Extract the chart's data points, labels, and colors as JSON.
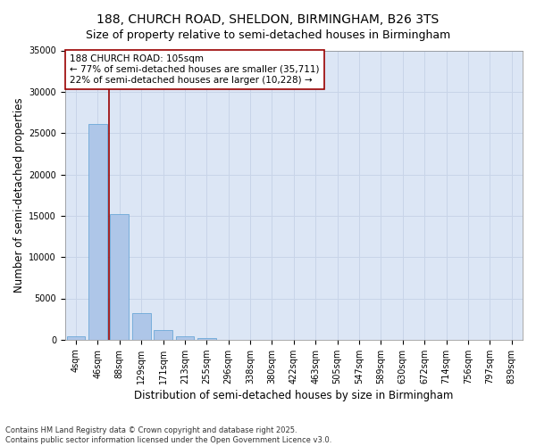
{
  "title_line1": "188, CHURCH ROAD, SHELDON, BIRMINGHAM, B26 3TS",
  "title_line2": "Size of property relative to semi-detached houses in Birmingham",
  "xlabel": "Distribution of semi-detached houses by size in Birmingham",
  "ylabel": "Number of semi-detached properties",
  "categories": [
    "4sqm",
    "46sqm",
    "88sqm",
    "129sqm",
    "171sqm",
    "213sqm",
    "255sqm",
    "296sqm",
    "338sqm",
    "380sqm",
    "422sqm",
    "463sqm",
    "505sqm",
    "547sqm",
    "589sqm",
    "630sqm",
    "672sqm",
    "714sqm",
    "756sqm",
    "797sqm",
    "839sqm"
  ],
  "values": [
    400,
    26100,
    15200,
    3200,
    1200,
    450,
    150,
    0,
    0,
    0,
    0,
    0,
    0,
    0,
    0,
    0,
    0,
    0,
    0,
    0,
    0
  ],
  "bar_color": "#aec6e8",
  "bar_edge_color": "#5a9fd4",
  "grid_color": "#c8d4e8",
  "background_color": "#dce6f5",
  "vline_color": "#990000",
  "annotation_title": "188 CHURCH ROAD: 105sqm",
  "annotation_line1": "← 77% of semi-detached houses are smaller (35,711)",
  "annotation_line2": "22% of semi-detached houses are larger (10,228) →",
  "annotation_color": "#990000",
  "ylim": [
    0,
    35000
  ],
  "yticks": [
    0,
    5000,
    10000,
    15000,
    20000,
    25000,
    30000,
    35000
  ],
  "footnote": "Contains HM Land Registry data © Crown copyright and database right 2025.\nContains public sector information licensed under the Open Government Licence v3.0.",
  "title_fontsize": 10,
  "subtitle_fontsize": 9,
  "axis_label_fontsize": 8.5,
  "tick_fontsize": 7,
  "annot_fontsize": 7.5,
  "footnote_fontsize": 6
}
